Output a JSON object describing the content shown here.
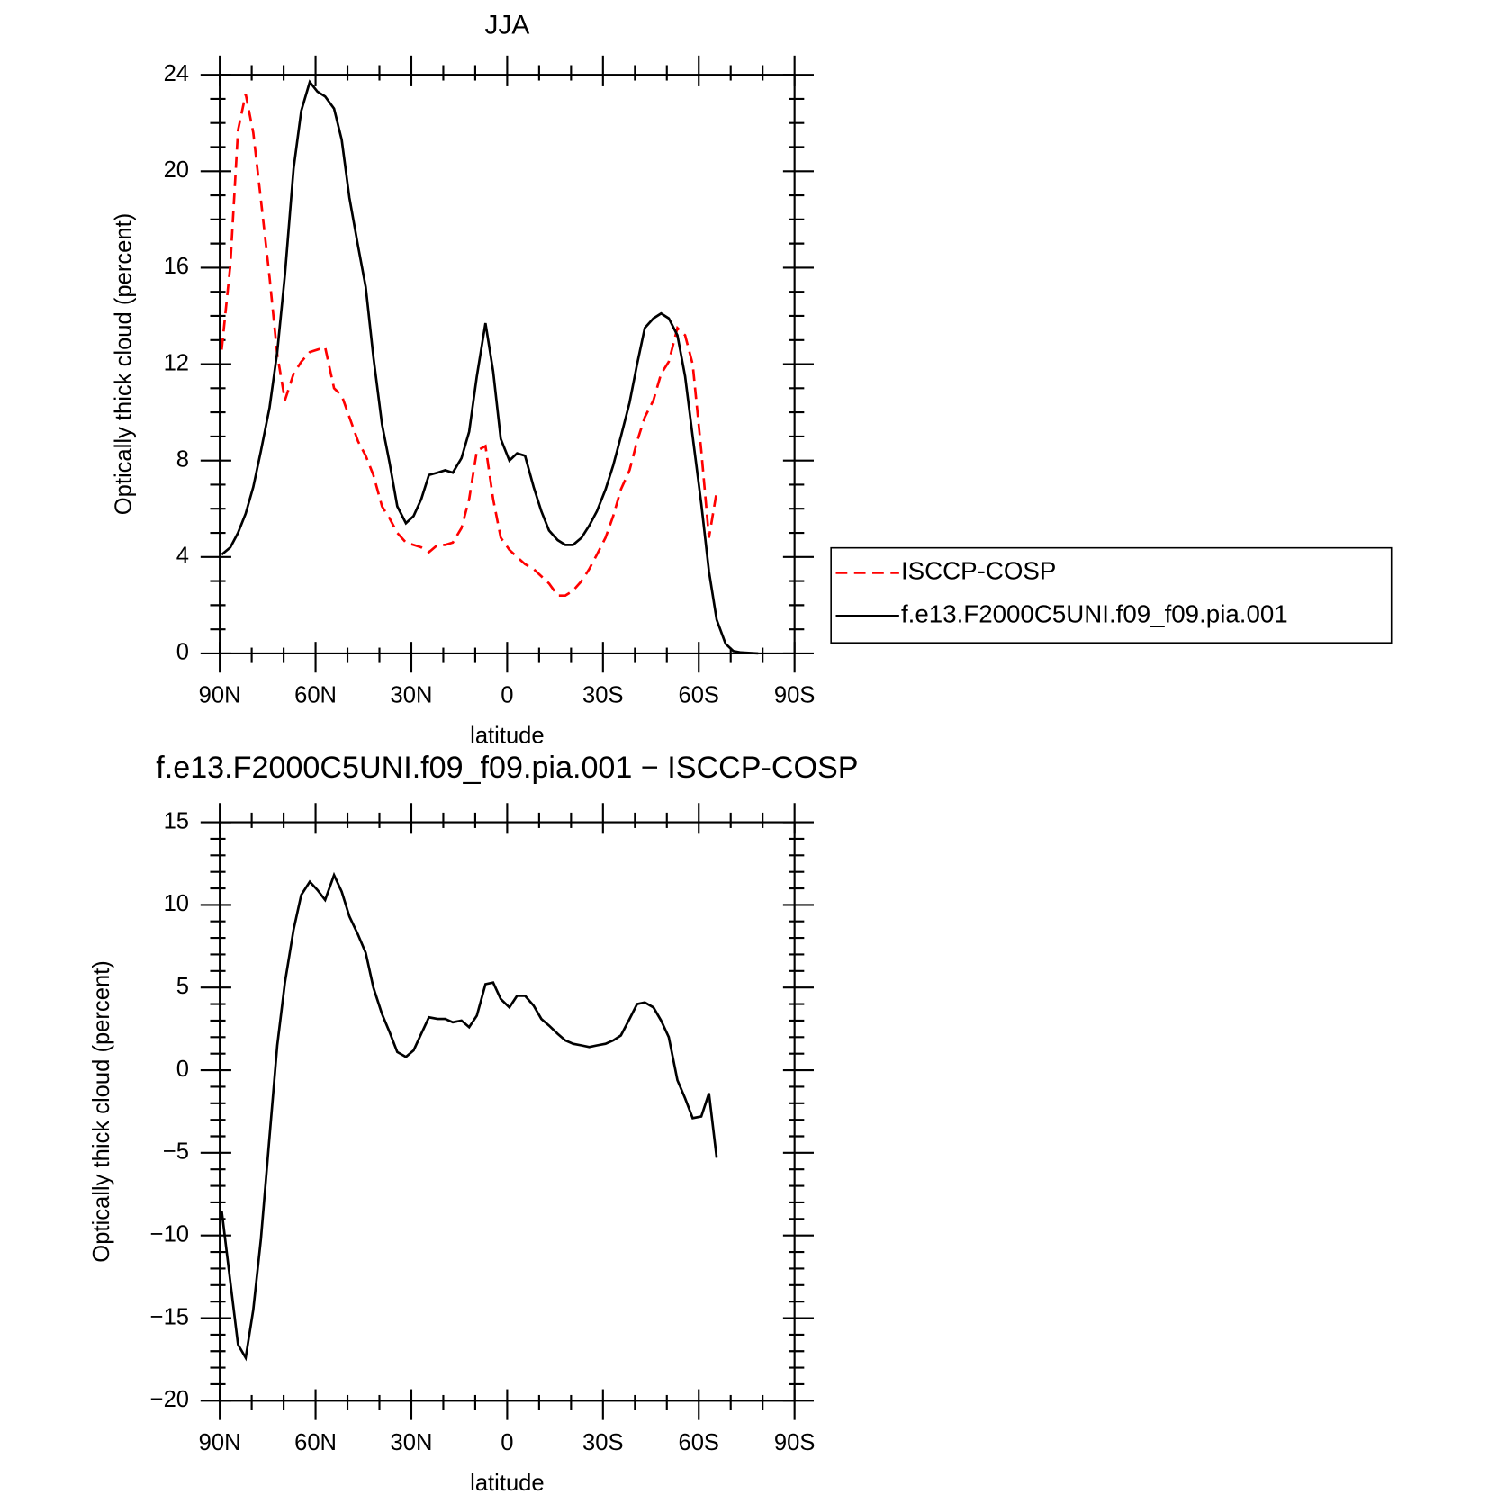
{
  "chart_data": [
    {
      "type": "line",
      "title": "JJA",
      "xlabel": "latitude",
      "ylabel": "Optically thick cloud (percent)",
      "x": [
        89.4,
        86.7,
        84.3,
        81.9,
        79.5,
        77.1,
        74.4,
        72.0,
        69.6,
        66.9,
        64.5,
        61.8,
        59.4,
        57.0,
        54.2,
        51.8,
        49.4,
        46.7,
        44.3,
        41.9,
        39.2,
        36.8,
        34.4,
        31.7,
        29.3,
        26.9,
        24.5,
        21.8,
        19.4,
        17.0,
        14.3,
        11.9,
        9.5,
        6.8,
        4.4,
        2.0,
        -0.7,
        -3.1,
        -5.6,
        -8.3,
        -10.7,
        -13.1,
        -15.8,
        -18.2,
        -20.6,
        -23.3,
        -25.7,
        -28.1,
        -30.8,
        -33.2,
        -35.6,
        -38.3,
        -40.7,
        -43.1,
        -45.8,
        -48.2,
        -50.6,
        -53.3,
        -55.7,
        -58.1,
        -60.8,
        -63.2,
        -65.6,
        -68.4,
        -70.8,
        -73.2,
        -78.6
      ],
      "series": [
        {
          "name": "ISCCP-COSP",
          "color": "#ff0000",
          "dashed": true,
          "values": [
            12.6,
            16.1,
            21.7,
            23.2,
            21.6,
            18.8,
            15.6,
            12.4,
            10.5,
            11.6,
            12.1,
            12.5,
            12.6,
            12.7,
            11.0,
            10.7,
            9.8,
            8.8,
            8.2,
            7.4,
            6.1,
            5.6,
            5.0,
            4.6,
            4.5,
            4.4,
            4.2,
            4.5,
            4.5,
            4.6,
            5.2,
            6.4,
            8.4,
            8.6,
            6.4,
            4.8,
            4.3,
            4.0,
            3.7,
            3.5,
            3.2,
            2.9,
            2.4,
            2.4,
            2.6,
            3.0,
            3.5,
            4.1,
            4.8,
            5.7,
            6.8,
            7.6,
            8.8,
            9.8,
            10.5,
            11.6,
            12.1,
            13.5,
            13.2,
            12.0,
            8.4,
            4.8,
            6.7,
            null,
            null,
            null,
            null
          ]
        },
        {
          "name": "f.e13.F2000C5UNI.f09_f09.pia.001",
          "color": "#000000",
          "dashed": false,
          "values": [
            4.1,
            4.4,
            5.0,
            5.8,
            6.9,
            8.4,
            10.2,
            12.5,
            15.7,
            20.1,
            22.5,
            23.7,
            23.3,
            23.1,
            22.6,
            21.3,
            18.9,
            16.9,
            15.2,
            12.3,
            9.5,
            7.9,
            6.1,
            5.4,
            5.7,
            6.4,
            7.4,
            7.5,
            7.6,
            7.5,
            8.1,
            9.2,
            11.5,
            13.7,
            11.7,
            8.9,
            8.0,
            8.3,
            8.2,
            6.9,
            5.9,
            5.1,
            4.7,
            4.5,
            4.5,
            4.8,
            5.3,
            5.9,
            6.8,
            7.8,
            9.0,
            10.4,
            12.0,
            13.5,
            13.9,
            14.1,
            13.9,
            13.2,
            11.5,
            9.0,
            6.2,
            3.4,
            1.4,
            0.4,
            0.1,
            0.04,
            0
          ]
        }
      ],
      "xlim": [
        90,
        -90
      ],
      "xticks": [
        {
          "value": 90,
          "label": "90N"
        },
        {
          "value": 60,
          "label": "60N"
        },
        {
          "value": 30,
          "label": "30N"
        },
        0,
        {
          "value": -30,
          "label": "30S"
        },
        {
          "value": -60,
          "label": "60S"
        },
        {
          "value": -90,
          "label": "90S"
        }
      ],
      "ylim": [
        0,
        24
      ],
      "yticks": [
        0,
        4,
        8,
        12,
        16,
        20,
        24
      ],
      "legend": "right"
    },
    {
      "type": "line",
      "title": "f.e13.F2000C5UNI.f09_f09.pia.001 − ISCCP-COSP",
      "xlabel": "latitude",
      "ylabel": "Optically thick cloud (percent)",
      "x": [
        89.4,
        86.7,
        84.3,
        81.9,
        79.5,
        77.1,
        74.4,
        72.0,
        69.6,
        66.9,
        64.5,
        61.8,
        59.4,
        57.0,
        54.2,
        51.8,
        49.4,
        46.7,
        44.3,
        41.9,
        39.2,
        36.8,
        34.4,
        31.7,
        29.3,
        26.9,
        24.5,
        21.8,
        19.4,
        17.0,
        14.3,
        11.9,
        9.5,
        6.8,
        4.4,
        2.0,
        -0.7,
        -3.1,
        -5.6,
        -8.3,
        -10.7,
        -13.1,
        -15.8,
        -18.2,
        -20.6,
        -23.3,
        -25.7,
        -28.1,
        -30.8,
        -33.2,
        -35.6,
        -38.3,
        -40.7,
        -43.1,
        -45.8,
        -48.2,
        -50.6,
        -53.3,
        -55.7,
        -58.1,
        -60.8,
        -63.2,
        -65.6
      ],
      "values": [
        -8.5,
        -12.8,
        -16.6,
        -17.4,
        -14.5,
        -10.2,
        -4.0,
        1.5,
        5.3,
        8.5,
        10.6,
        11.4,
        10.9,
        10.3,
        11.8,
        10.8,
        9.3,
        8.2,
        7.1,
        5.0,
        3.4,
        2.3,
        1.1,
        0.8,
        1.2,
        2.2,
        3.2,
        3.1,
        3.1,
        2.9,
        3.0,
        2.6,
        3.3,
        5.2,
        5.3,
        4.3,
        3.8,
        4.5,
        4.5,
        3.9,
        3.1,
        2.7,
        2.2,
        1.8,
        1.6,
        1.5,
        1.4,
        1.5,
        1.6,
        1.8,
        2.1,
        3.1,
        4.0,
        4.1,
        3.8,
        3.0,
        2.0,
        -0.6,
        -1.7,
        -2.9,
        -2.8,
        -1.4,
        -5.3
      ],
      "color": "#000000",
      "xlim": [
        90,
        -90
      ],
      "xticks": [
        {
          "value": 90,
          "label": "90N"
        },
        {
          "value": 60,
          "label": "60N"
        },
        {
          "value": 30,
          "label": "30N"
        },
        0,
        {
          "value": -30,
          "label": "30S"
        },
        {
          "value": -60,
          "label": "60S"
        },
        {
          "value": -90,
          "label": "90S"
        }
      ],
      "ylim": [
        -20,
        15
      ],
      "yticks": [
        {
          "value": -20,
          "label": "−20"
        },
        {
          "value": -15,
          "label": "−15"
        },
        {
          "value": -10,
          "label": "−10"
        },
        {
          "value": -5,
          "label": "−5"
        },
        0,
        5,
        10,
        15
      ]
    }
  ]
}
